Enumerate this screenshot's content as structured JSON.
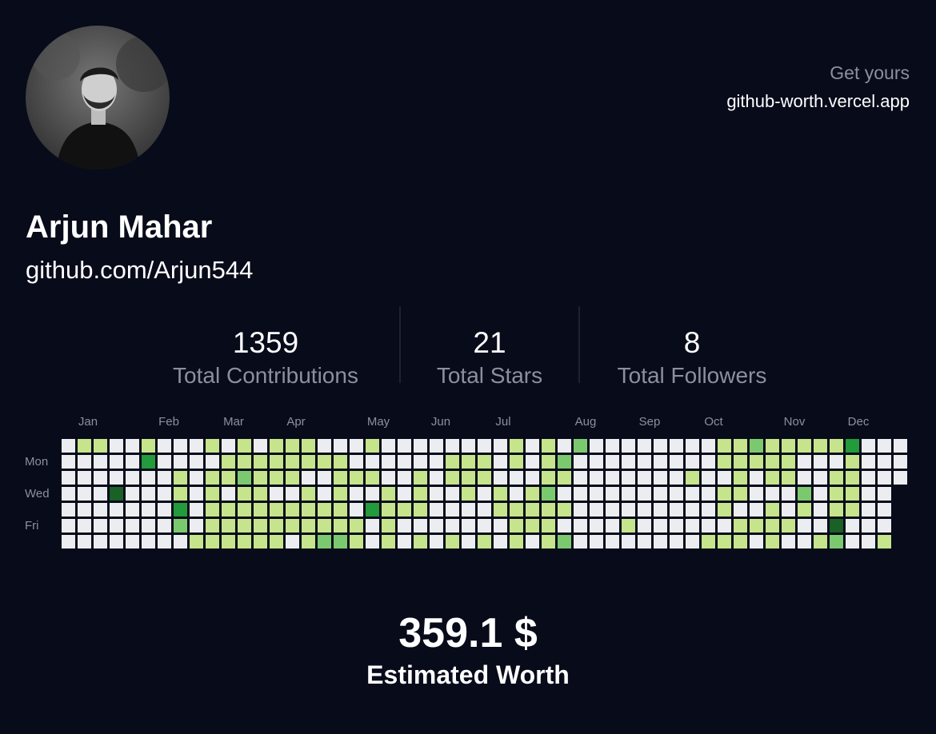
{
  "header": {
    "cta": "Get yours",
    "site": "github-worth.vercel.app"
  },
  "profile": {
    "name": "Arjun Mahar",
    "url": "github.com/Arjun544"
  },
  "stats": [
    {
      "value": 1359,
      "label": "Total Contributions"
    },
    {
      "value": 21,
      "label": "Total Stars"
    },
    {
      "value": 8,
      "label": "Total Followers"
    }
  ],
  "calendar": {
    "months": [
      "Jan",
      "Feb",
      "Mar",
      "Apr",
      "May",
      "Jun",
      "Jul",
      "Aug",
      "Sep",
      "Oct",
      "Nov",
      "Dec"
    ],
    "days": [
      "Mon",
      "Wed",
      "Fri"
    ],
    "level_colors": [
      "#ebedf0",
      "#c6e48b",
      "#7bc96f",
      "#239a3b",
      "#196127"
    ],
    "weeks": [
      [
        0,
        0,
        0,
        0,
        0,
        0,
        0
      ],
      [
        1,
        0,
        0,
        0,
        0,
        0,
        0
      ],
      [
        1,
        0,
        0,
        0,
        0,
        0,
        0
      ],
      [
        0,
        0,
        0,
        4,
        0,
        0,
        0
      ],
      [
        0,
        0,
        0,
        0,
        0,
        0,
        0
      ],
      [
        1,
        3,
        0,
        0,
        0,
        0,
        0
      ],
      [
        0,
        0,
        0,
        0,
        0,
        0,
        0
      ],
      [
        0,
        0,
        1,
        1,
        3,
        2,
        0
      ],
      [
        0,
        0,
        0,
        0,
        0,
        0,
        1
      ],
      [
        1,
        0,
        1,
        1,
        1,
        1,
        1
      ],
      [
        0,
        1,
        1,
        0,
        1,
        1,
        1
      ],
      [
        1,
        1,
        2,
        1,
        1,
        1,
        1
      ],
      [
        0,
        1,
        1,
        1,
        1,
        1,
        1
      ],
      [
        1,
        1,
        1,
        0,
        1,
        1,
        1
      ],
      [
        1,
        1,
        1,
        0,
        1,
        1,
        0
      ],
      [
        1,
        1,
        0,
        1,
        1,
        1,
        1
      ],
      [
        0,
        1,
        0,
        0,
        1,
        1,
        2
      ],
      [
        0,
        1,
        1,
        1,
        1,
        1,
        2
      ],
      [
        0,
        0,
        1,
        0,
        0,
        1,
        1
      ],
      [
        1,
        0,
        1,
        0,
        3,
        0,
        0
      ],
      [
        0,
        0,
        0,
        1,
        1,
        1,
        1
      ],
      [
        0,
        0,
        0,
        0,
        1,
        0,
        0
      ],
      [
        0,
        0,
        1,
        1,
        1,
        0,
        1
      ],
      [
        0,
        0,
        0,
        0,
        0,
        0,
        0
      ],
      [
        0,
        1,
        1,
        0,
        0,
        0,
        1
      ],
      [
        0,
        1,
        1,
        1,
        0,
        0,
        0
      ],
      [
        0,
        1,
        1,
        0,
        0,
        0,
        1
      ],
      [
        0,
        0,
        0,
        1,
        1,
        0,
        0
      ],
      [
        1,
        1,
        0,
        0,
        1,
        1,
        1
      ],
      [
        0,
        0,
        0,
        1,
        1,
        1,
        0
      ],
      [
        1,
        1,
        1,
        2,
        1,
        1,
        1
      ],
      [
        0,
        2,
        1,
        0,
        1,
        0,
        2
      ],
      [
        2,
        0,
        0,
        0,
        0,
        0,
        0
      ],
      [
        0,
        0,
        0,
        0,
        0,
        0,
        0
      ],
      [
        0,
        0,
        0,
        0,
        0,
        0,
        0
      ],
      [
        0,
        0,
        0,
        0,
        0,
        1,
        0
      ],
      [
        0,
        0,
        0,
        0,
        0,
        0,
        0
      ],
      [
        0,
        0,
        0,
        0,
        0,
        0,
        0
      ],
      [
        0,
        0,
        0,
        0,
        0,
        0,
        0
      ],
      [
        0,
        0,
        1,
        0,
        0,
        0,
        0
      ],
      [
        0,
        0,
        0,
        0,
        0,
        0,
        1
      ],
      [
        1,
        1,
        0,
        1,
        1,
        0,
        1
      ],
      [
        1,
        1,
        1,
        1,
        0,
        1,
        1
      ],
      [
        2,
        1,
        0,
        0,
        0,
        1,
        0
      ],
      [
        1,
        1,
        1,
        0,
        1,
        1,
        1
      ],
      [
        1,
        1,
        1,
        0,
        0,
        1,
        0
      ],
      [
        1,
        0,
        0,
        2,
        1,
        0,
        0
      ],
      [
        1,
        0,
        0,
        0,
        0,
        0,
        1
      ],
      [
        1,
        0,
        1,
        1,
        1,
        4,
        2
      ],
      [
        3,
        1,
        1,
        1,
        1,
        0,
        0
      ],
      [
        0,
        0,
        0,
        0,
        0,
        0,
        0
      ],
      [
        0,
        0,
        0,
        0,
        0,
        0,
        1
      ],
      [
        0,
        0,
        0,
        null,
        null,
        null,
        null
      ]
    ]
  },
  "worth": {
    "value": "359.1 $",
    "label": "Estimated Worth"
  }
}
